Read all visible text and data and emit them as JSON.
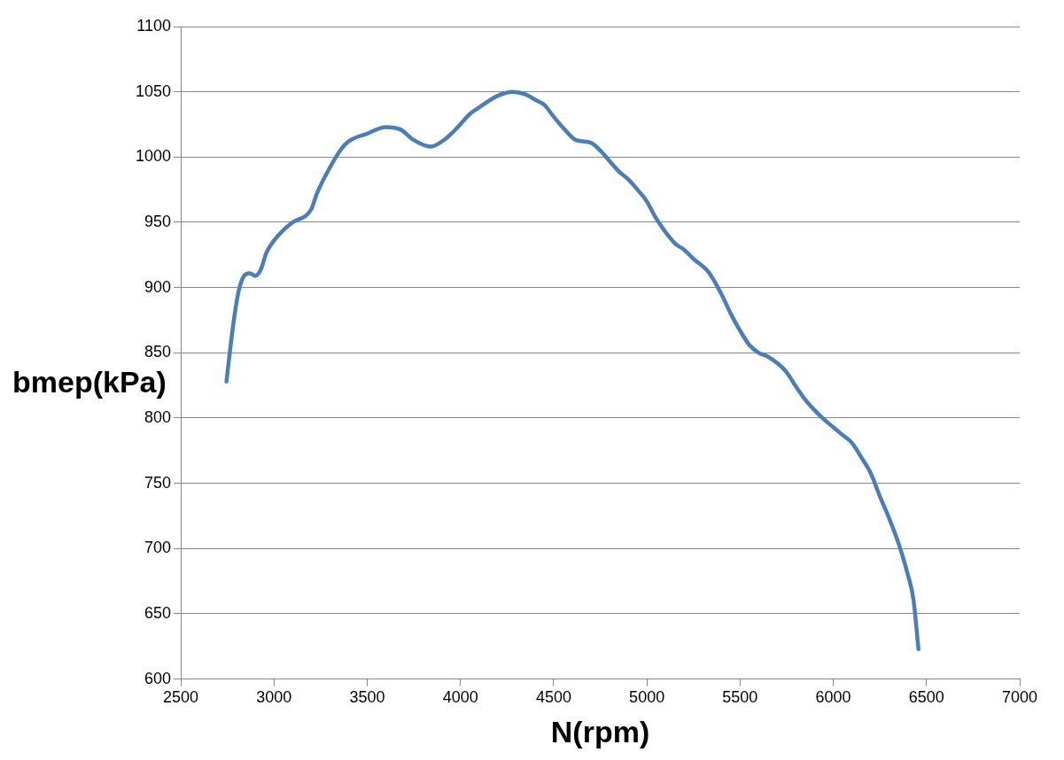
{
  "chart_data": {
    "type": "line",
    "xlabel": "N(rpm)",
    "ylabel": "bmep(kPa)",
    "color": "#4a7ebb",
    "grid": "y",
    "legend": false,
    "marker": "none",
    "line_style": "solid",
    "xlim": [
      2500,
      7000
    ],
    "xticks": [
      2500,
      3000,
      3500,
      4000,
      4500,
      5000,
      5500,
      6000,
      6500,
      7000
    ],
    "ylim": [
      600,
      1100
    ],
    "yticks": [
      600,
      650,
      700,
      750,
      800,
      850,
      900,
      950,
      1000,
      1050,
      1100
    ],
    "x": [
      2745,
      2780,
      2810,
      2840,
      2870,
      2900,
      2930,
      2960,
      3000,
      3050,
      3100,
      3200,
      3230,
      3300,
      3360,
      3400,
      3500,
      3600,
      3680,
      3750,
      3840,
      3920,
      3980,
      4050,
      4100,
      4200,
      4280,
      4350,
      4400,
      4450,
      4500,
      4560,
      4620,
      4700,
      4750,
      4800,
      4850,
      4900,
      4950,
      5000,
      5050,
      5150,
      5200,
      5250,
      5330,
      5400,
      5450,
      5500,
      5550,
      5600,
      5650,
      5700,
      5750,
      5800,
      5850,
      5900,
      5950,
      6000,
      6050,
      6100,
      6150,
      6200,
      6250,
      6300,
      6350,
      6400,
      6430,
      6457
    ],
    "values": [
      828,
      870,
      897,
      909,
      911,
      909,
      914,
      927,
      936,
      944,
      950,
      960,
      972,
      992,
      1006,
      1012,
      1018,
      1023,
      1021,
      1013,
      1008,
      1014,
      1022,
      1033,
      1038,
      1047,
      1050,
      1048,
      1044,
      1040,
      1031,
      1021,
      1013,
      1011,
      1005,
      997,
      989,
      983,
      975,
      966,
      953,
      934,
      929,
      922,
      912,
      895,
      880,
      867,
      856,
      850,
      847,
      842,
      835,
      824,
      814,
      806,
      799,
      793,
      787,
      781,
      770,
      758,
      740,
      723,
      704,
      680,
      661,
      623
    ]
  }
}
